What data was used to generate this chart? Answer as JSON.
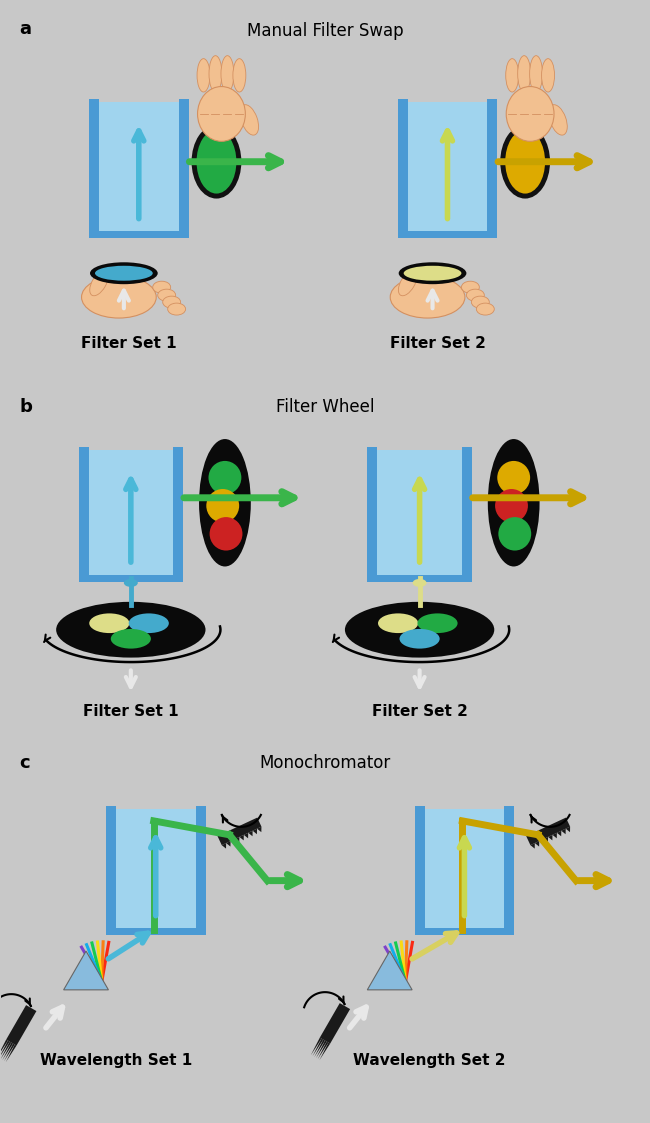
{
  "bg_color": "#c8c8c8",
  "title_a": "Manual Filter Swap",
  "title_b": "Filter Wheel",
  "title_c": "Monochromator",
  "label_a": "a",
  "label_b": "b",
  "label_c": "c",
  "label_filter_set1": "Filter Set 1",
  "label_filter_set2": "Filter Set 2",
  "label_wavelength_set1": "Wavelength Set 1",
  "label_wavelength_set2": "Wavelength Set 2",
  "green_color": "#3ab54a",
  "yellow_color": "#c8a200",
  "cyan_color": "#4ab8d8",
  "cuvette_fill": "#a0d4ee",
  "cuvette_wall": "#4a9ad4",
  "cuvette_fill2": "#b8e4c0",
  "skin_color": "#f2c090",
  "skin_shadow": "#e8a870",
  "skin_outline": "#d49060",
  "black": "#111111",
  "red_filter": "#cc2222",
  "yellow_filter": "#ddaa00",
  "green_filter": "#22aa44",
  "blue_filter": "#4488cc",
  "cyan_filter": "#44aacc",
  "light_yellow_filter": "#dddd88",
  "arrow_green": "#3ab54a",
  "arrow_yellow": "#c8a200",
  "arrow_cyan": "#4ab8d8",
  "arrow_lightyellow": "#c8d850",
  "white_beam": "#e8e8e8",
  "grating_color": "#1a1a1a",
  "prism_color": "#88bbdd"
}
